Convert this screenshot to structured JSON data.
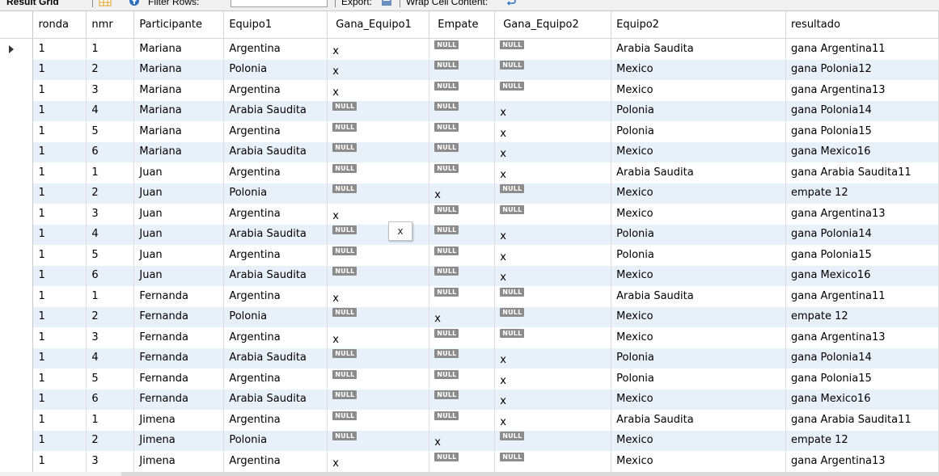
{
  "toolbar": {
    "result_grid_label": "Result Grid",
    "filter_label": "Filter Rows:",
    "filter_value": "",
    "export_label": "Export:",
    "wrap_label": "Wrap Cell Content:"
  },
  "columns": [
    "ronda",
    "nmr",
    "Participante",
    "Equipo1",
    "Gana_Equipo1",
    "Empate",
    "Gana_Equipo2",
    "Equipo2",
    "resultado"
  ],
  "null_text": "NULL",
  "tooltip_text": "x",
  "rows": [
    {
      "ronda": "1",
      "nmr": "1",
      "participante": "Mariana",
      "equipo1": "Argentina",
      "gana1": "x",
      "empate": "NULL",
      "gana2": "NULL",
      "equipo2": "Arabia Saudita",
      "resultado": "gana Argentina11"
    },
    {
      "ronda": "1",
      "nmr": "2",
      "participante": "Mariana",
      "equipo1": "Polonia",
      "gana1": "x",
      "empate": "NULL",
      "gana2": "NULL",
      "equipo2": "Mexico",
      "resultado": "gana Polonia12"
    },
    {
      "ronda": "1",
      "nmr": "3",
      "participante": "Mariana",
      "equipo1": "Argentina",
      "gana1": "x",
      "empate": "NULL",
      "gana2": "NULL",
      "equipo2": "Mexico",
      "resultado": "gana Argentina13"
    },
    {
      "ronda": "1",
      "nmr": "4",
      "participante": "Mariana",
      "equipo1": "Arabia Saudita",
      "gana1": "NULL",
      "empate": "NULL",
      "gana2": "x",
      "equipo2": "Polonia",
      "resultado": "gana Polonia14"
    },
    {
      "ronda": "1",
      "nmr": "5",
      "participante": "Mariana",
      "equipo1": "Argentina",
      "gana1": "NULL",
      "empate": "NULL",
      "gana2": "x",
      "equipo2": "Polonia",
      "resultado": "gana Polonia15"
    },
    {
      "ronda": "1",
      "nmr": "6",
      "participante": "Mariana",
      "equipo1": "Arabia Saudita",
      "gana1": "NULL",
      "empate": "NULL",
      "gana2": "x",
      "equipo2": "Mexico",
      "resultado": "gana Mexico16"
    },
    {
      "ronda": "1",
      "nmr": "1",
      "participante": "Juan",
      "equipo1": "Argentina",
      "gana1": "NULL",
      "empate": "NULL",
      "gana2": "x",
      "equipo2": "Arabia Saudita",
      "resultado": "gana Arabia Saudita11"
    },
    {
      "ronda": "1",
      "nmr": "2",
      "participante": "Juan",
      "equipo1": "Polonia",
      "gana1": "NULL",
      "empate": "x",
      "gana2": "NULL",
      "equipo2": "Mexico",
      "resultado": "empate 12"
    },
    {
      "ronda": "1",
      "nmr": "3",
      "participante": "Juan",
      "equipo1": "Argentina",
      "gana1": "x",
      "empate": "NULL",
      "gana2": "NULL",
      "equipo2": "Mexico",
      "resultado": "gana Argentina13"
    },
    {
      "ronda": "1",
      "nmr": "4",
      "participante": "Juan",
      "equipo1": "Arabia Saudita",
      "gana1": "NULL",
      "empate": "NULL",
      "gana2": "x",
      "equipo2": "Polonia",
      "resultado": "gana Polonia14"
    },
    {
      "ronda": "1",
      "nmr": "5",
      "participante": "Juan",
      "equipo1": "Argentina",
      "gana1": "NULL",
      "empate": "NULL",
      "gana2": "x",
      "equipo2": "Polonia",
      "resultado": "gana Polonia15"
    },
    {
      "ronda": "1",
      "nmr": "6",
      "participante": "Juan",
      "equipo1": "Arabia Saudita",
      "gana1": "NULL",
      "empate": "NULL",
      "gana2": "x",
      "equipo2": "Mexico",
      "resultado": "gana Mexico16"
    },
    {
      "ronda": "1",
      "nmr": "1",
      "participante": "Fernanda",
      "equipo1": "Argentina",
      "gana1": "x",
      "empate": "NULL",
      "gana2": "NULL",
      "equipo2": "Arabia Saudita",
      "resultado": "gana Argentina11"
    },
    {
      "ronda": "1",
      "nmr": "2",
      "participante": "Fernanda",
      "equipo1": "Polonia",
      "gana1": "NULL",
      "empate": "x",
      "gana2": "NULL",
      "equipo2": "Mexico",
      "resultado": "empate 12"
    },
    {
      "ronda": "1",
      "nmr": "3",
      "participante": "Fernanda",
      "equipo1": "Argentina",
      "gana1": "x",
      "empate": "NULL",
      "gana2": "NULL",
      "equipo2": "Mexico",
      "resultado": "gana Argentina13"
    },
    {
      "ronda": "1",
      "nmr": "4",
      "participante": "Fernanda",
      "equipo1": "Arabia Saudita",
      "gana1": "NULL",
      "empate": "NULL",
      "gana2": "x",
      "equipo2": "Polonia",
      "resultado": "gana Polonia14"
    },
    {
      "ronda": "1",
      "nmr": "5",
      "participante": "Fernanda",
      "equipo1": "Argentina",
      "gana1": "NULL",
      "empate": "NULL",
      "gana2": "x",
      "equipo2": "Polonia",
      "resultado": "gana Polonia15"
    },
    {
      "ronda": "1",
      "nmr": "6",
      "participante": "Fernanda",
      "equipo1": "Arabia Saudita",
      "gana1": "NULL",
      "empate": "NULL",
      "gana2": "x",
      "equipo2": "Mexico",
      "resultado": "gana Mexico16"
    },
    {
      "ronda": "1",
      "nmr": "1",
      "participante": "Jimena",
      "equipo1": "Argentina",
      "gana1": "NULL",
      "empate": "NULL",
      "gana2": "x",
      "equipo2": "Arabia Saudita",
      "resultado": "gana Arabia Saudita11"
    },
    {
      "ronda": "1",
      "nmr": "2",
      "participante": "Jimena",
      "equipo1": "Polonia",
      "gana1": "NULL",
      "empate": "x",
      "gana2": "NULL",
      "equipo2": "Mexico",
      "resultado": "empate 12"
    },
    {
      "ronda": "1",
      "nmr": "3",
      "participante": "Jimena",
      "equipo1": "Argentina",
      "gana1": "x",
      "empate": "NULL",
      "gana2": "NULL",
      "equipo2": "Mexico",
      "resultado": "gana Argentina13"
    }
  ],
  "selected_row": 0,
  "colors": {
    "row_alt": "#e8f1fa",
    "null_badge": "#8c8c8c",
    "border": "#d4d4d4"
  }
}
